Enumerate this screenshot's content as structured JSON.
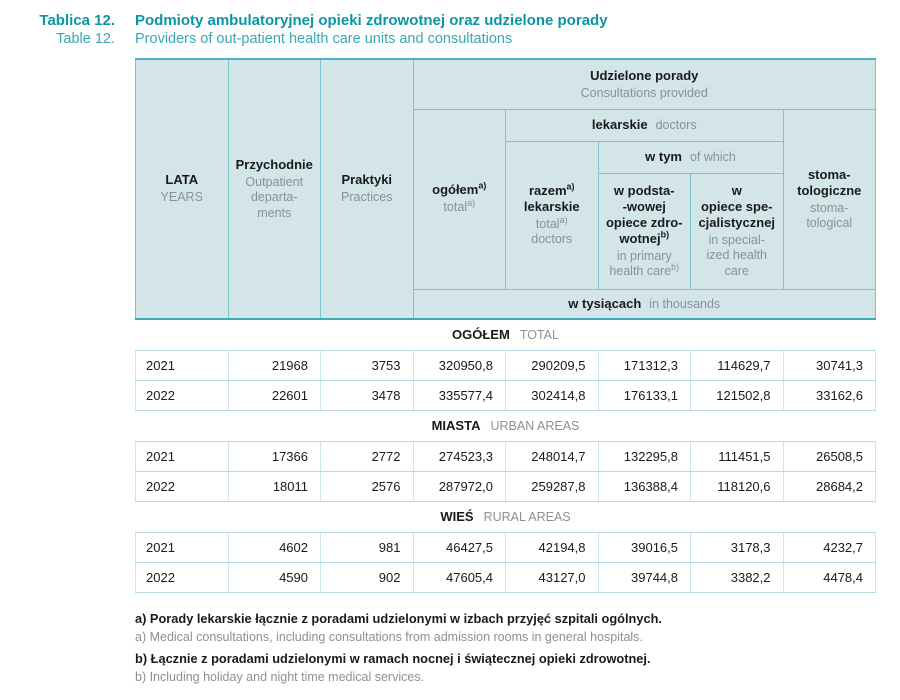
{
  "page": {
    "number_pl": "Tablica 12.",
    "number_en": "Table 12.",
    "title_pl": "Podmioty ambulatoryjnej opieki zdrowotnej oraz udzielone porady",
    "title_en": "Providers of out-patient health care units and consultations"
  },
  "colors": {
    "title_teal": "#0b95a5",
    "title_teal_light": "#3ba7b5",
    "header_fill": "#d3e5e9",
    "header_border": "#7cc3cd",
    "header_top_border": "#4db2c0",
    "header_bottom_border": "#39abb9",
    "row_separator": "#b3dbe1",
    "cell_separator": "#cde6ea",
    "text_black": "#1a1a1a",
    "text_gray": "#8b9193"
  },
  "table": {
    "group_headers": {
      "consultations_pl": "Udzielone porady",
      "consultations_en": "Consultations provided",
      "doctors_pl": "lekarskie",
      "doctors_en": "doctors",
      "of_which_pl": "w tym",
      "of_which_en": "of which",
      "unit_pl": "w tysiącach",
      "unit_en": "in thousands"
    },
    "columns": [
      {
        "id": "years",
        "pl": [
          {
            "t": "LATA",
            "sup": ""
          }
        ],
        "en": [
          {
            "t": "YEARS",
            "sup": ""
          }
        ]
      },
      {
        "id": "outpatient-departments",
        "pl": [
          {
            "t": "Przychodnie",
            "sup": ""
          }
        ],
        "en": [
          {
            "t": "Outpatient",
            "sup": ""
          },
          {
            "t": "departa-",
            "sup": ""
          },
          {
            "t": "ments",
            "sup": ""
          }
        ]
      },
      {
        "id": "practices",
        "pl": [
          {
            "t": "Praktyki",
            "sup": ""
          }
        ],
        "en": [
          {
            "t": "Practices",
            "sup": ""
          }
        ]
      },
      {
        "id": "total",
        "pl": [
          {
            "t": "ogółem",
            "sup": "a)"
          }
        ],
        "en": [
          {
            "t": "total",
            "sup": "a)"
          }
        ]
      },
      {
        "id": "total-doctors",
        "pl": [
          {
            "t": "razem",
            "sup": "a)"
          },
          {
            "t": "lekarskie",
            "sup": ""
          }
        ],
        "en": [
          {
            "t": "total",
            "sup": "a)"
          },
          {
            "t": "doctors",
            "sup": ""
          }
        ]
      },
      {
        "id": "primary-health-care",
        "pl": [
          {
            "t": "w podsta-",
            "sup": ""
          },
          {
            "t": "-wowej",
            "sup": ""
          },
          {
            "t": "opiece zdro-",
            "sup": ""
          },
          {
            "t": "wotnej",
            "sup": "b)"
          }
        ],
        "en": [
          {
            "t": "in primary",
            "sup": ""
          },
          {
            "t": "health care",
            "sup": "b)"
          }
        ]
      },
      {
        "id": "specialized-health-care",
        "pl": [
          {
            "t": "w",
            "sup": ""
          },
          {
            "t": "opiece spe-",
            "sup": ""
          },
          {
            "t": "cjalistycznej",
            "sup": ""
          }
        ],
        "en": [
          {
            "t": "in special-",
            "sup": ""
          },
          {
            "t": "ized health",
            "sup": ""
          },
          {
            "t": "care",
            "sup": ""
          }
        ]
      },
      {
        "id": "dental",
        "pl": [
          {
            "t": "stoma-",
            "sup": ""
          },
          {
            "t": "tologiczne",
            "sup": ""
          }
        ],
        "en": [
          {
            "t": "stoma-",
            "sup": ""
          },
          {
            "t": "tological",
            "sup": ""
          }
        ]
      }
    ],
    "sections": [
      {
        "label_pl": "OGÓŁEM",
        "label_en": "TOTAL",
        "rows": [
          {
            "year": "2021",
            "values": [
              "21968",
              "3753",
              "320950,8",
              "290209,5",
              "171312,3",
              "114629,7",
              "30741,3"
            ]
          },
          {
            "year": "2022",
            "values": [
              "22601",
              "3478",
              "335577,4",
              "302414,8",
              "176133,1",
              "121502,8",
              "33162,6"
            ]
          }
        ]
      },
      {
        "label_pl": "MIASTA",
        "label_en": "URBAN AREAS",
        "rows": [
          {
            "year": "2021",
            "values": [
              "17366",
              "2772",
              "274523,3",
              "248014,7",
              "132295,8",
              "111451,5",
              "26508,5"
            ]
          },
          {
            "year": "2022",
            "values": [
              "18011",
              "2576",
              "287972,0",
              "259287,8",
              "136388,4",
              "118120,6",
              "28684,2"
            ]
          }
        ]
      },
      {
        "label_pl": "WIEŚ",
        "label_en": "RURAL AREAS",
        "rows": [
          {
            "year": "2021",
            "values": [
              "4602",
              "981",
              "46427,5",
              "42194,8",
              "39016,5",
              "3178,3",
              "4232,7"
            ]
          },
          {
            "year": "2022",
            "values": [
              "4590",
              "902",
              "47605,4",
              "43127,0",
              "39744,8",
              "3382,2",
              "4478,4"
            ]
          }
        ]
      }
    ]
  },
  "footnotes": [
    {
      "id": "a-pl",
      "text": "a) Porady lekarskie łącznie z poradami udzielonymi w izbach przyjęć szpitali ogólnych."
    },
    {
      "id": "a-en",
      "text": "a) Medical consultations, including consultations from admission rooms in general hospitals."
    },
    {
      "id": "b-pl",
      "text": "b) Łącznie z poradami udzielonymi w ramach nocnej i świątecznej opieki zdrowotnej."
    },
    {
      "id": "b-en",
      "text": "b) Including holiday and night time medical services."
    }
  ]
}
